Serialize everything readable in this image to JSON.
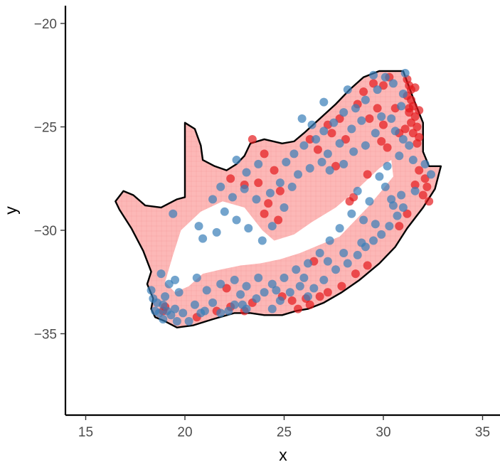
{
  "chart_data": {
    "type": "scatter",
    "title": "",
    "xlabel": "x",
    "ylabel": "y",
    "xlim": [
      14,
      36
    ],
    "ylim": [
      -38.8,
      -19.1
    ],
    "x_ticks": [
      15,
      20,
      25,
      30,
      35
    ],
    "y_ticks": [
      -20,
      -25,
      -30,
      -35
    ],
    "x_tick_labels": [
      "15",
      "20",
      "25",
      "30",
      "35"
    ],
    "y_tick_labels": [
      "−20",
      "−25",
      "−30",
      "−35"
    ],
    "grid": false,
    "legend": "none",
    "colors": {
      "red_points": "#e41a1c",
      "blue_points": "#377eb8",
      "raster_fill": "#fb9a99",
      "outline": "#000000"
    },
    "outline": [
      [
        16.5,
        -28.6
      ],
      [
        16.9,
        -28.1
      ],
      [
        17.4,
        -28.3
      ],
      [
        18.0,
        -28.8
      ],
      [
        18.8,
        -28.9
      ],
      [
        19.6,
        -28.5
      ],
      [
        20.0,
        -28.4
      ],
      [
        20.0,
        -24.8
      ],
      [
        20.5,
        -25.1
      ],
      [
        20.8,
        -25.9
      ],
      [
        20.9,
        -26.6
      ],
      [
        21.5,
        -26.9
      ],
      [
        22.1,
        -27.1
      ],
      [
        22.6,
        -26.8
      ],
      [
        23.0,
        -26.4
      ],
      [
        23.3,
        -25.8
      ],
      [
        24.0,
        -25.6
      ],
      [
        24.9,
        -25.8
      ],
      [
        25.5,
        -25.7
      ],
      [
        26.0,
        -25.3
      ],
      [
        26.8,
        -24.6
      ],
      [
        27.6,
        -23.9
      ],
      [
        28.3,
        -23.2
      ],
      [
        29.0,
        -22.6
      ],
      [
        29.8,
        -22.3
      ],
      [
        31.0,
        -22.3
      ],
      [
        31.5,
        -23.6
      ],
      [
        32.0,
        -24.8
      ],
      [
        32.0,
        -26.2
      ],
      [
        32.3,
        -26.9
      ],
      [
        32.9,
        -26.9
      ],
      [
        32.6,
        -28.0
      ],
      [
        32.0,
        -28.9
      ],
      [
        31.2,
        -29.9
      ],
      [
        30.6,
        -30.8
      ],
      [
        29.8,
        -31.6
      ],
      [
        28.8,
        -32.4
      ],
      [
        27.9,
        -33.0
      ],
      [
        27.0,
        -33.5
      ],
      [
        26.2,
        -33.8
      ],
      [
        25.6,
        -33.9
      ],
      [
        24.9,
        -34.1
      ],
      [
        24.0,
        -34.1
      ],
      [
        23.3,
        -34.0
      ],
      [
        22.5,
        -34.0
      ],
      [
        21.4,
        -34.3
      ],
      [
        20.4,
        -34.6
      ],
      [
        19.6,
        -34.7
      ],
      [
        19.0,
        -34.4
      ],
      [
        18.5,
        -34.2
      ],
      [
        18.3,
        -33.8
      ],
      [
        18.4,
        -33.3
      ],
      [
        18.1,
        -32.6
      ],
      [
        18.3,
        -32.0
      ],
      [
        17.9,
        -31.0
      ],
      [
        17.3,
        -29.9
      ],
      [
        16.7,
        -29.0
      ],
      [
        16.5,
        -28.6
      ]
    ],
    "inland_gap": [
      [
        19.8,
        -30.0
      ],
      [
        20.8,
        -29.1
      ],
      [
        21.9,
        -28.6
      ],
      [
        23.0,
        -28.9
      ],
      [
        23.9,
        -30.0
      ],
      [
        24.5,
        -30.5
      ],
      [
        25.5,
        -30.2
      ],
      [
        26.4,
        -29.6
      ],
      [
        27.6,
        -28.9
      ],
      [
        28.7,
        -28.0
      ],
      [
        29.8,
        -27.0
      ],
      [
        30.4,
        -26.6
      ],
      [
        30.5,
        -27.4
      ],
      [
        29.9,
        -28.1
      ],
      [
        29.2,
        -28.9
      ],
      [
        28.4,
        -29.7
      ],
      [
        27.8,
        -30.3
      ],
      [
        26.8,
        -30.7
      ],
      [
        25.8,
        -31.1
      ],
      [
        24.8,
        -31.4
      ],
      [
        23.8,
        -31.6
      ],
      [
        22.8,
        -31.7
      ],
      [
        21.8,
        -31.9
      ],
      [
        20.9,
        -32.1
      ],
      [
        20.2,
        -32.7
      ],
      [
        19.5,
        -33.0
      ],
      [
        19.0,
        -32.5
      ],
      [
        19.4,
        -31.2
      ],
      [
        19.8,
        -30.0
      ]
    ],
    "series": [
      {
        "color": "#e41a1c",
        "points": [
          [
            31.2,
            -22.7
          ],
          [
            31.3,
            -23.0
          ],
          [
            31.4,
            -23.2
          ],
          [
            31.2,
            -23.5
          ],
          [
            31.4,
            -23.7
          ],
          [
            31.5,
            -24.0
          ],
          [
            31.3,
            -24.3
          ],
          [
            31.6,
            -24.5
          ],
          [
            31.4,
            -24.8
          ],
          [
            31.7,
            -25.0
          ],
          [
            31.5,
            -25.3
          ],
          [
            31.8,
            -25.5
          ],
          [
            31.6,
            -23.1
          ],
          [
            31.3,
            -24.1
          ],
          [
            31.8,
            -24.2
          ],
          [
            31.7,
            -25.8
          ],
          [
            31.1,
            -25.1
          ],
          [
            32.1,
            -27.5
          ],
          [
            32.2,
            -27.9
          ],
          [
            32.0,
            -28.3
          ],
          [
            32.3,
            -28.6
          ],
          [
            31.8,
            -27.1
          ],
          [
            31.6,
            -27.8
          ],
          [
            30.3,
            -22.6
          ],
          [
            29.5,
            -22.9
          ],
          [
            29.0,
            -23.3
          ],
          [
            28.7,
            -23.9
          ],
          [
            27.8,
            -24.6
          ],
          [
            27.2,
            -24.9
          ],
          [
            26.3,
            -25.6
          ],
          [
            26.7,
            -26.1
          ],
          [
            27.4,
            -25.3
          ],
          [
            28.1,
            -25.6
          ],
          [
            29.7,
            -24.1
          ],
          [
            30.0,
            -24.9
          ],
          [
            30.6,
            -24.1
          ],
          [
            30.8,
            -25.3
          ],
          [
            30.2,
            -26.0
          ],
          [
            29.9,
            -25.7
          ],
          [
            27.6,
            -26.9
          ],
          [
            23.4,
            -25.6
          ],
          [
            24.0,
            -26.3
          ],
          [
            24.5,
            -27.1
          ],
          [
            23.7,
            -27.7
          ],
          [
            24.8,
            -28.1
          ],
          [
            24.2,
            -28.7
          ],
          [
            22.3,
            -27.5
          ],
          [
            23.0,
            -27.8
          ],
          [
            24.7,
            -29.5
          ],
          [
            24.0,
            -29.2
          ],
          [
            28.5,
            -28.4
          ],
          [
            28.3,
            -28.6
          ],
          [
            29.2,
            -27.3
          ],
          [
            31.2,
            -29.2
          ],
          [
            30.8,
            -29.8
          ],
          [
            26.1,
            -33.3
          ],
          [
            26.3,
            -33.6
          ],
          [
            25.7,
            -33.8
          ],
          [
            26.8,
            -33.2
          ],
          [
            27.2,
            -33.0
          ],
          [
            27.9,
            -32.7
          ],
          [
            28.6,
            -32.1
          ],
          [
            23.4,
            -33.5
          ],
          [
            23.0,
            -33.9
          ],
          [
            22.3,
            -33.7
          ],
          [
            21.6,
            -33.9
          ],
          [
            20.6,
            -34.2
          ],
          [
            19.0,
            -33.7
          ],
          [
            18.9,
            -33.9
          ],
          [
            22.1,
            -32.8
          ],
          [
            24.9,
            -33.2
          ],
          [
            25.4,
            -33.4
          ],
          [
            26.5,
            -31.5
          ],
          [
            29.2,
            -31.7
          ],
          [
            30.0,
            -23.0
          ],
          [
            29.3,
            -24.6
          ]
        ]
      },
      {
        "color": "#377eb8",
        "points": [
          [
            18.5,
            -33.9
          ],
          [
            18.7,
            -34.0
          ],
          [
            18.9,
            -33.6
          ],
          [
            19.1,
            -33.9
          ],
          [
            18.4,
            -33.3
          ],
          [
            18.9,
            -34.3
          ],
          [
            19.3,
            -34.1
          ],
          [
            19.5,
            -33.8
          ],
          [
            19.9,
            -34.0
          ],
          [
            20.2,
            -34.4
          ],
          [
            19.0,
            -33.2
          ],
          [
            19.2,
            -32.6
          ],
          [
            18.3,
            -32.9
          ],
          [
            18.8,
            -32.1
          ],
          [
            19.5,
            -32.4
          ],
          [
            19.7,
            -33.0
          ],
          [
            20.5,
            -33.6
          ],
          [
            21.0,
            -33.9
          ],
          [
            21.4,
            -33.5
          ],
          [
            21.8,
            -34.0
          ],
          [
            22.2,
            -33.9
          ],
          [
            22.5,
            -33.6
          ],
          [
            22.8,
            -33.1
          ],
          [
            23.1,
            -33.8
          ],
          [
            23.6,
            -33.3
          ],
          [
            24.0,
            -33.0
          ],
          [
            24.4,
            -33.8
          ],
          [
            24.8,
            -33.4
          ],
          [
            25.3,
            -33.0
          ],
          [
            25.8,
            -32.7
          ],
          [
            26.5,
            -32.8
          ],
          [
            26.2,
            -33.2
          ],
          [
            27.0,
            -32.4
          ],
          [
            27.6,
            -31.9
          ],
          [
            28.2,
            -31.6
          ],
          [
            28.7,
            -31.2
          ],
          [
            29.1,
            -30.8
          ],
          [
            29.5,
            -30.5
          ],
          [
            29.9,
            -30.2
          ],
          [
            30.3,
            -29.8
          ],
          [
            30.7,
            -29.3
          ],
          [
            31.0,
            -28.9
          ],
          [
            30.9,
            -28.3
          ],
          [
            30.5,
            -28.8
          ],
          [
            30.1,
            -27.9
          ],
          [
            29.8,
            -27.4
          ],
          [
            30.2,
            -26.9
          ],
          [
            30.8,
            -26.4
          ],
          [
            31.3,
            -25.9
          ],
          [
            31.0,
            -25.6
          ],
          [
            30.6,
            -25.2
          ],
          [
            30.4,
            -24.6
          ],
          [
            30.9,
            -24.0
          ],
          [
            31.0,
            -23.4
          ],
          [
            30.5,
            -22.9
          ],
          [
            29.7,
            -23.2
          ],
          [
            29.1,
            -23.7
          ],
          [
            28.6,
            -24.1
          ],
          [
            28.0,
            -24.3
          ],
          [
            27.5,
            -24.8
          ],
          [
            27.0,
            -25.2
          ],
          [
            26.6,
            -25.6
          ],
          [
            26.0,
            -25.9
          ],
          [
            25.5,
            -26.3
          ],
          [
            25.1,
            -26.7
          ],
          [
            25.7,
            -27.3
          ],
          [
            26.3,
            -27.0
          ],
          [
            26.9,
            -26.7
          ],
          [
            27.3,
            -27.1
          ],
          [
            28.0,
            -26.8
          ],
          [
            28.5,
            -26.2
          ],
          [
            29.1,
            -25.9
          ],
          [
            29.6,
            -25.3
          ],
          [
            29.9,
            -24.5
          ],
          [
            28.9,
            -24.7
          ],
          [
            28.4,
            -25.1
          ],
          [
            27.8,
            -25.8
          ],
          [
            27.2,
            -26.3
          ],
          [
            24.8,
            -27.7
          ],
          [
            24.3,
            -28.2
          ],
          [
            23.6,
            -28.5
          ],
          [
            23.0,
            -28.0
          ],
          [
            22.4,
            -28.4
          ],
          [
            21.8,
            -27.9
          ],
          [
            21.4,
            -28.5
          ],
          [
            22.0,
            -29.1
          ],
          [
            22.6,
            -29.5
          ],
          [
            23.2,
            -29.9
          ],
          [
            23.9,
            -30.5
          ],
          [
            24.4,
            -29.8
          ],
          [
            25.0,
            -28.9
          ],
          [
            25.4,
            -27.9
          ],
          [
            23.1,
            -27.2
          ],
          [
            23.7,
            -26.8
          ],
          [
            22.6,
            -26.6
          ],
          [
            28.7,
            -28.1
          ],
          [
            29.3,
            -28.6
          ],
          [
            29.0,
            -29.5
          ],
          [
            28.4,
            -29.2
          ],
          [
            27.8,
            -29.9
          ],
          [
            27.3,
            -30.5
          ],
          [
            26.8,
            -31.1
          ],
          [
            26.2,
            -31.6
          ],
          [
            25.6,
            -31.9
          ],
          [
            25.0,
            -32.3
          ],
          [
            24.4,
            -32.6
          ],
          [
            23.7,
            -32.3
          ],
          [
            23.1,
            -32.7
          ],
          [
            22.5,
            -32.4
          ],
          [
            21.8,
            -32.6
          ],
          [
            21.1,
            -32.9
          ],
          [
            20.6,
            -32.3
          ],
          [
            19.4,
            -29.2
          ],
          [
            20.7,
            -29.8
          ],
          [
            21.6,
            -30.1
          ],
          [
            20.9,
            -30.4
          ],
          [
            31.5,
            -26.6
          ],
          [
            32.1,
            -26.8
          ],
          [
            32.4,
            -27.3
          ],
          [
            31.6,
            -28.1
          ],
          [
            26.4,
            -24.9
          ],
          [
            25.9,
            -24.6
          ],
          [
            27.0,
            -23.8
          ],
          [
            28.2,
            -23.2
          ],
          [
            30.1,
            -22.6
          ],
          [
            31.1,
            -22.4
          ],
          [
            29.5,
            -22.5
          ],
          [
            18.6,
            -33.5
          ],
          [
            19.6,
            -34.4
          ],
          [
            20.8,
            -34.0
          ],
          [
            22.9,
            -33.6
          ],
          [
            24.6,
            -32.9
          ],
          [
            26.0,
            -32.3
          ],
          [
            27.2,
            -31.5
          ],
          [
            28.0,
            -31.1
          ],
          [
            28.9,
            -30.6
          ],
          [
            29.6,
            -29.7
          ],
          [
            30.4,
            -28.5
          ]
        ]
      }
    ]
  }
}
